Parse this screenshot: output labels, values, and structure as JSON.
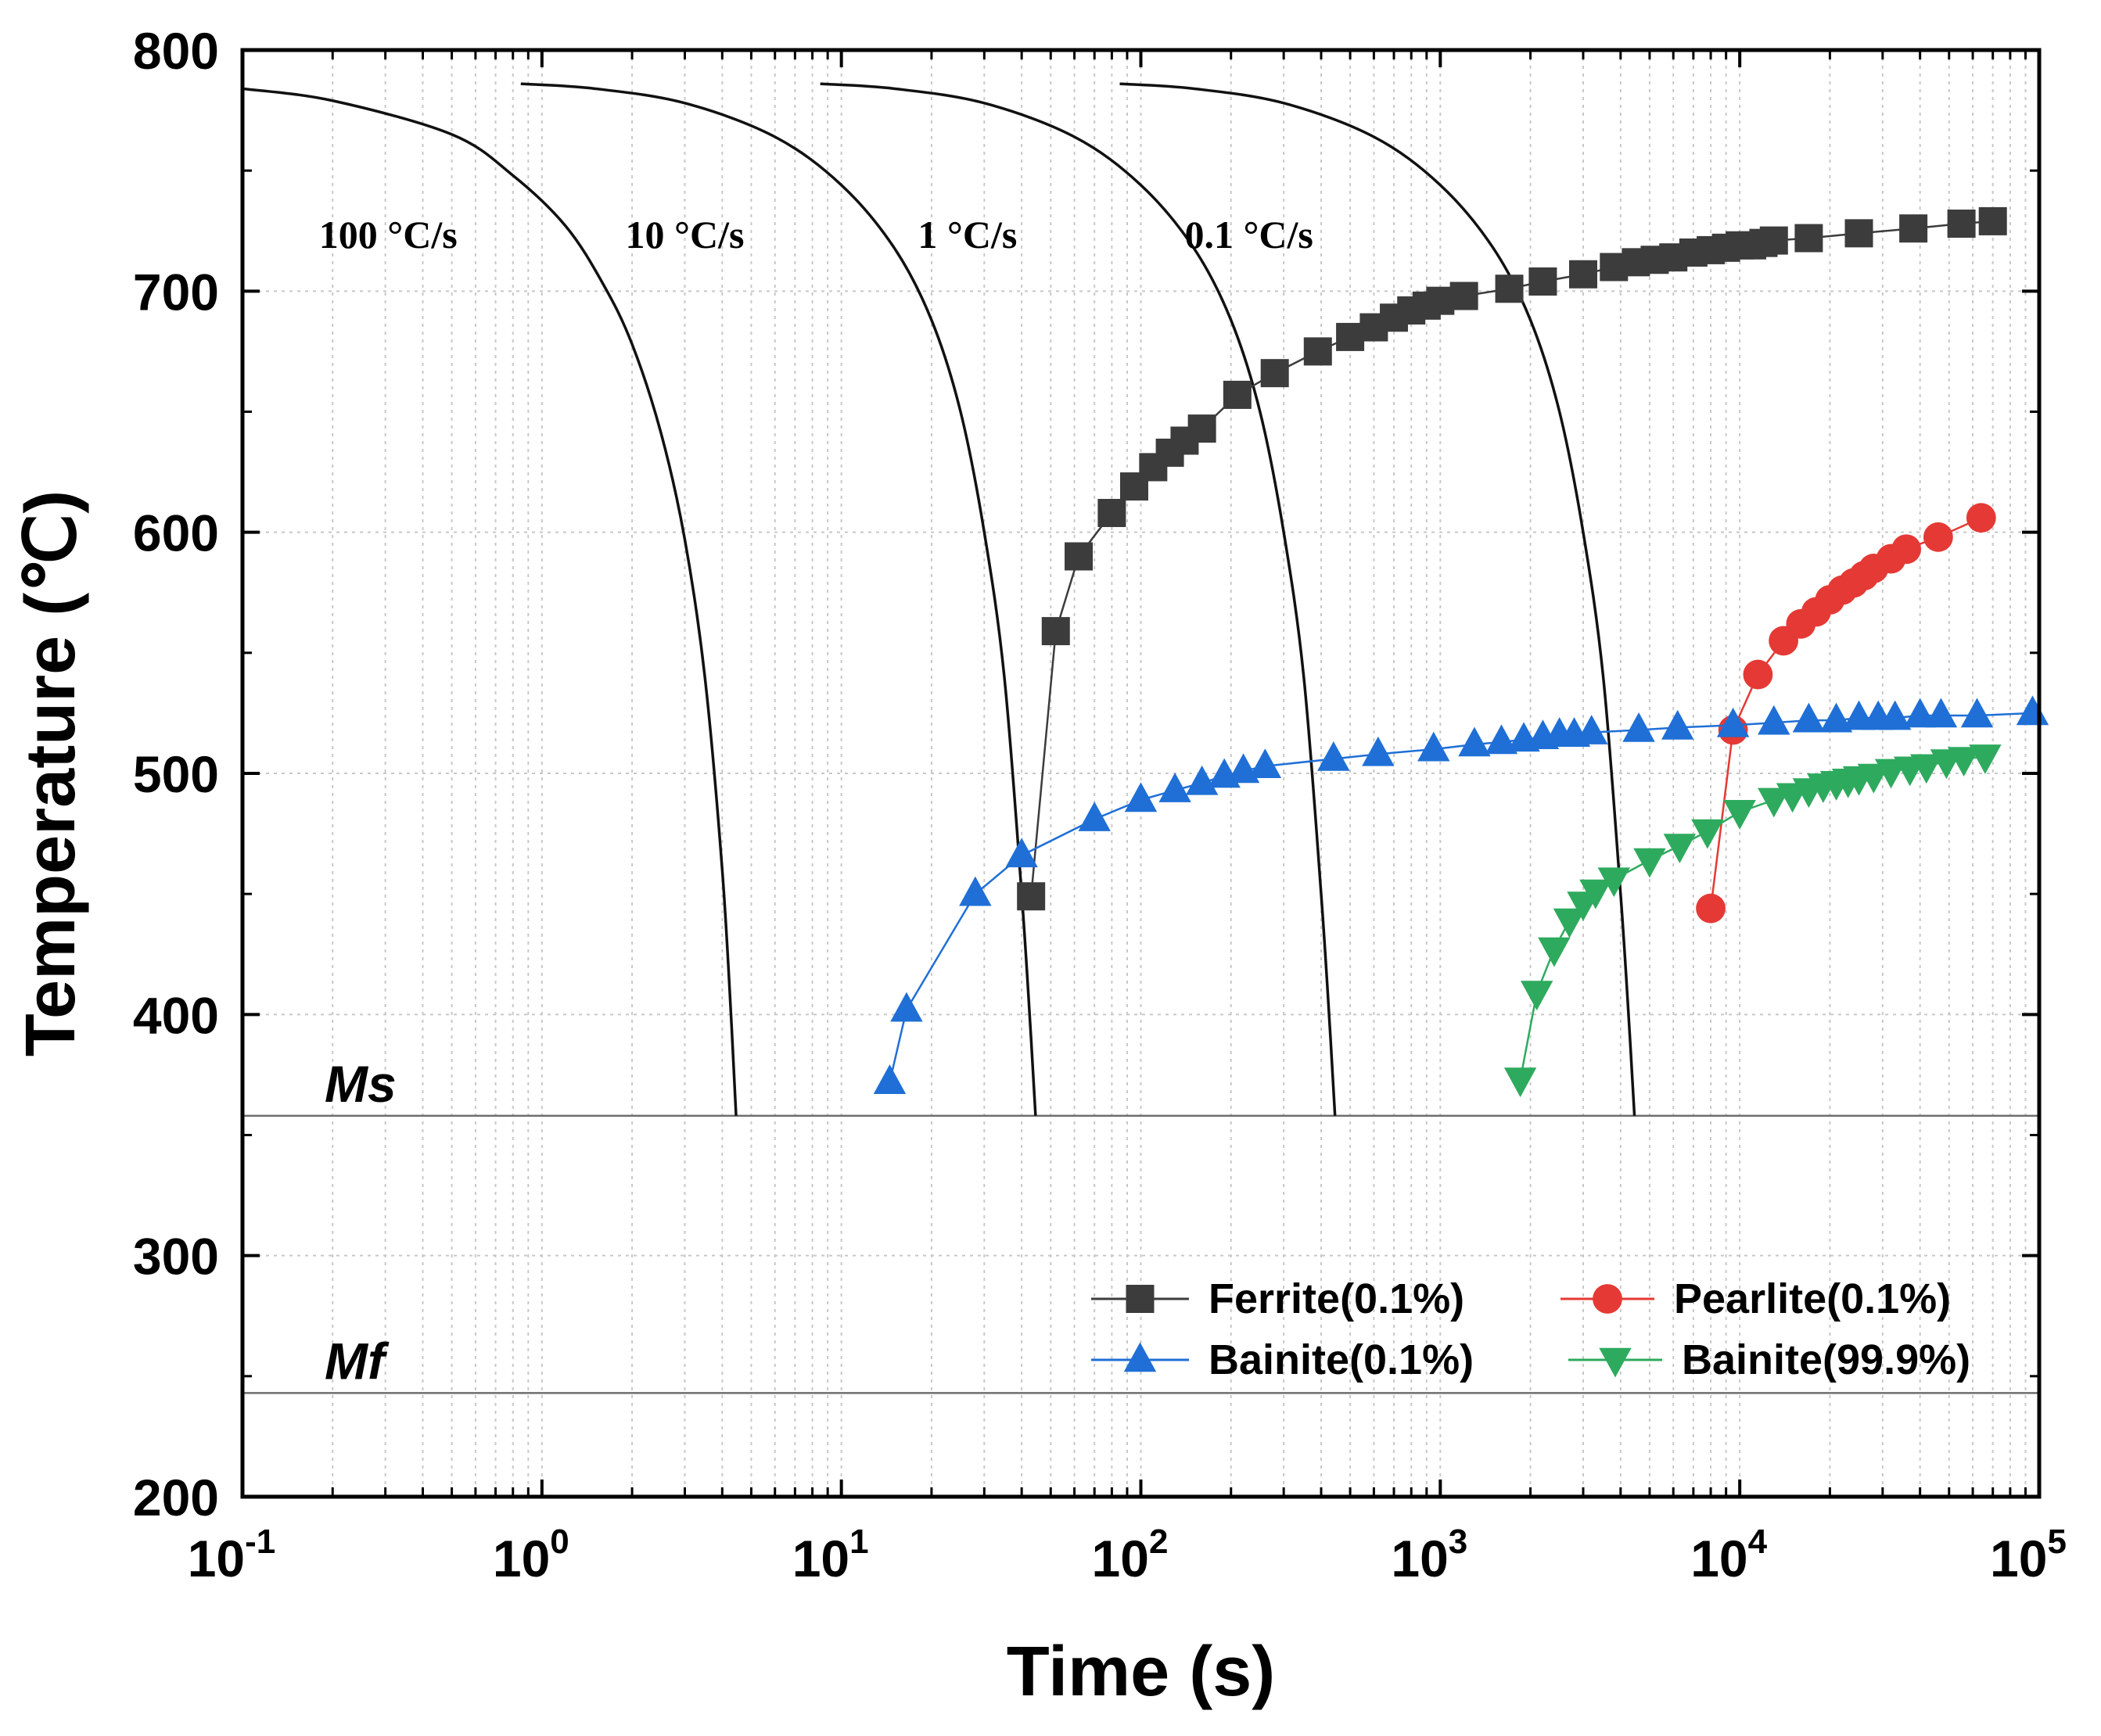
{
  "chart_data": {
    "type": "scatter",
    "title": "",
    "xlabel": "Time (s)",
    "ylabel": "Temperature (℃)",
    "xscale": "log",
    "xlim": [
      0.1,
      100000
    ],
    "ylim": [
      200,
      800
    ],
    "grid": true,
    "x_ticks": [
      {
        "value": 0.1,
        "base": "10",
        "exp": "-1"
      },
      {
        "value": 1,
        "base": "10",
        "exp": "0"
      },
      {
        "value": 10,
        "base": "10",
        "exp": "1"
      },
      {
        "value": 100,
        "base": "10",
        "exp": "2"
      },
      {
        "value": 1000,
        "base": "10",
        "exp": "3"
      },
      {
        "value": 10000,
        "base": "10",
        "exp": "4"
      },
      {
        "value": 100000,
        "base": "10",
        "exp": "5"
      }
    ],
    "y_ticks": [
      {
        "value": 200,
        "label": "200"
      },
      {
        "value": 300,
        "label": "300"
      },
      {
        "value": 400,
        "label": "400"
      },
      {
        "value": 500,
        "label": "500"
      },
      {
        "value": 600,
        "label": "600"
      },
      {
        "value": 700,
        "label": "700"
      },
      {
        "value": 800,
        "label": "800"
      }
    ],
    "reference_lines": [
      {
        "name": "Ms",
        "label": "Ms",
        "y": 358
      },
      {
        "name": "Mf",
        "label": "Mf",
        "y": 243
      }
    ],
    "cooling_curves": [
      {
        "label": "100 °C/s",
        "label_x": 0.18,
        "label_y": 718,
        "points": [
          [
            0.1,
            784
          ],
          [
            0.2,
            779
          ],
          [
            0.5,
            765
          ],
          [
            0.8,
            748
          ],
          [
            1.2,
            727
          ],
          [
            1.6,
            703
          ],
          [
            2,
            678
          ],
          [
            2.5,
            641
          ],
          [
            3,
            597
          ],
          [
            3.5,
            540
          ],
          [
            4,
            460
          ],
          [
            4.3,
            395
          ],
          [
            4.45,
            358
          ]
        ]
      },
      {
        "label": "10 °C/s",
        "label_x": 1.9,
        "label_y": 718,
        "points": [
          [
            0.85,
            786
          ],
          [
            1.5,
            784
          ],
          [
            3,
            778
          ],
          [
            6,
            764
          ],
          [
            10,
            744
          ],
          [
            15,
            718
          ],
          [
            20,
            688
          ],
          [
            25,
            650
          ],
          [
            30,
            600
          ],
          [
            35,
            540
          ],
          [
            40,
            450
          ],
          [
            43,
            390
          ],
          [
            44.5,
            358
          ]
        ]
      },
      {
        "label": "1 °C/s",
        "label_x": 18,
        "label_y": 718,
        "points": [
          [
            8.5,
            786
          ],
          [
            15,
            784
          ],
          [
            30,
            778
          ],
          [
            60,
            764
          ],
          [
            100,
            744
          ],
          [
            150,
            718
          ],
          [
            200,
            688
          ],
          [
            250,
            650
          ],
          [
            300,
            600
          ],
          [
            350,
            540
          ],
          [
            400,
            450
          ],
          [
            430,
            390
          ],
          [
            445,
            358
          ]
        ]
      },
      {
        "label": "0.1 °C/s",
        "label_x": 140,
        "label_y": 718,
        "points": [
          [
            85,
            786
          ],
          [
            150,
            784
          ],
          [
            300,
            778
          ],
          [
            600,
            764
          ],
          [
            1000,
            744
          ],
          [
            1500,
            718
          ],
          [
            2000,
            688
          ],
          [
            2500,
            650
          ],
          [
            3000,
            600
          ],
          [
            3500,
            540
          ],
          [
            4000,
            450
          ],
          [
            4300,
            390
          ],
          [
            4450,
            358
          ]
        ]
      }
    ],
    "series": [
      {
        "name": "Ferrite(0.1%)",
        "marker": "square",
        "color": "#3c3c3c",
        "points": [
          [
            43,
            449
          ],
          [
            52,
            559
          ],
          [
            62,
            590
          ],
          [
            80,
            608
          ],
          [
            95,
            619
          ],
          [
            110,
            627
          ],
          [
            125,
            633
          ],
          [
            140,
            638
          ],
          [
            160,
            643
          ],
          [
            210,
            657
          ],
          [
            280,
            666
          ],
          [
            390,
            675
          ],
          [
            500,
            681
          ],
          [
            600,
            685
          ],
          [
            700,
            689
          ],
          [
            800,
            692
          ],
          [
            900,
            694
          ],
          [
            1000,
            696
          ],
          [
            1200,
            698
          ],
          [
            1700,
            701
          ],
          [
            2200,
            704
          ],
          [
            3000,
            707
          ],
          [
            3800,
            710
          ],
          [
            4500,
            712
          ],
          [
            5200,
            713
          ],
          [
            6000,
            714
          ],
          [
            7000,
            716
          ],
          [
            8000,
            717
          ],
          [
            9000,
            718
          ],
          [
            10000,
            719
          ],
          [
            11000,
            719
          ],
          [
            12000,
            720
          ],
          [
            13000,
            721
          ],
          [
            17000,
            722
          ],
          [
            25000,
            724
          ],
          [
            38000,
            726
          ],
          [
            55000,
            728
          ],
          [
            70000,
            729
          ]
        ]
      },
      {
        "name": "Pearlite(0.1%)",
        "marker": "circle",
        "color": "#e53935",
        "points": [
          [
            8000,
            444
          ],
          [
            9500,
            518
          ],
          [
            11500,
            541
          ],
          [
            14000,
            555
          ],
          [
            16000,
            562
          ],
          [
            18000,
            567
          ],
          [
            20000,
            572
          ],
          [
            22000,
            576
          ],
          [
            24000,
            579
          ],
          [
            26000,
            582
          ],
          [
            28000,
            585
          ],
          [
            32000,
            589
          ],
          [
            36000,
            593
          ],
          [
            46000,
            598
          ],
          [
            64000,
            606
          ]
        ]
      },
      {
        "name": "Bainite(0.1%)",
        "marker": "triangle-up",
        "color": "#1f6fd6",
        "points": [
          [
            14.5,
            372
          ],
          [
            16.5,
            402
          ],
          [
            28,
            450
          ],
          [
            40,
            466
          ],
          [
            70,
            481
          ],
          [
            100,
            489
          ],
          [
            130,
            493
          ],
          [
            160,
            496
          ],
          [
            190,
            499
          ],
          [
            220,
            501
          ],
          [
            260,
            503
          ],
          [
            440,
            506
          ],
          [
            620,
            508
          ],
          [
            950,
            510
          ],
          [
            1300,
            512
          ],
          [
            1600,
            513
          ],
          [
            1900,
            514
          ],
          [
            2200,
            515
          ],
          [
            2500,
            516
          ],
          [
            2800,
            516
          ],
          [
            3200,
            517
          ],
          [
            4600,
            518
          ],
          [
            6200,
            519
          ],
          [
            9500,
            520
          ],
          [
            13000,
            521
          ],
          [
            17000,
            522
          ],
          [
            21000,
            522
          ],
          [
            25000,
            523
          ],
          [
            29000,
            523
          ],
          [
            33000,
            523
          ],
          [
            40000,
            524
          ],
          [
            47000,
            524
          ],
          [
            62000,
            524
          ],
          [
            95000,
            525
          ]
        ]
      },
      {
        "name": "Bainite(99.9%)",
        "marker": "triangle-down",
        "color": "#2eaa5e",
        "points": [
          [
            1850,
            373
          ],
          [
            2100,
            409
          ],
          [
            2400,
            427
          ],
          [
            2700,
            439
          ],
          [
            3000,
            446
          ],
          [
            3300,
            451
          ],
          [
            3800,
            456
          ],
          [
            5000,
            464
          ],
          [
            6300,
            470
          ],
          [
            7800,
            476
          ],
          [
            10000,
            484
          ],
          [
            13000,
            489
          ],
          [
            15000,
            491
          ],
          [
            17000,
            493
          ],
          [
            19000,
            495
          ],
          [
            21000,
            496
          ],
          [
            23000,
            497
          ],
          [
            25000,
            498
          ],
          [
            28000,
            499
          ],
          [
            32000,
            501
          ],
          [
            37000,
            502
          ],
          [
            42000,
            503
          ],
          [
            49000,
            505
          ],
          [
            56000,
            506
          ],
          [
            66000,
            507
          ]
        ]
      }
    ]
  }
}
